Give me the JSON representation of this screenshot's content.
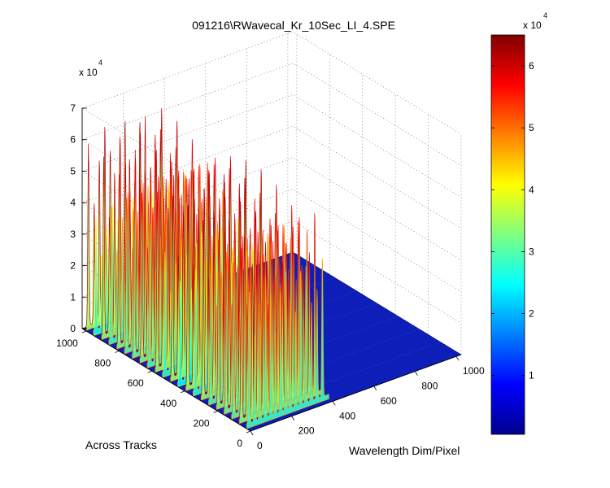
{
  "chart_data": {
    "type": "surface",
    "title": "091216\\RWavecal_Kr_10Sec_LI_4.SPE",
    "xlabel": "Wavelength Dim/Pixel",
    "ylabel": "Across Tracks",
    "zlabel": "",
    "x_ticks": [
      "0",
      "200",
      "400",
      "600",
      "800",
      "1000"
    ],
    "y_ticks": [
      "0",
      "200",
      "400",
      "600",
      "800",
      "1000"
    ],
    "z_ticks": [
      "0",
      "1",
      "2",
      "3",
      "4",
      "5",
      "6",
      "7"
    ],
    "z_multiplier": "x 10",
    "z_exponent": "4",
    "xlim": [
      0,
      1024
    ],
    "ylim": [
      0,
      1024
    ],
    "zlim": [
      0,
      70000
    ],
    "grid": true,
    "colormap": "jet",
    "colorbar": {
      "ticks": [
        "1",
        "2",
        "3",
        "4",
        "5",
        "6"
      ],
      "multiplier": "x 10",
      "exponent": "4",
      "range": [
        500,
        65000
      ]
    },
    "peak_pixels": [
      12,
      40,
      65,
      92,
      118,
      140,
      165,
      190,
      212,
      238,
      262,
      288,
      315,
      342,
      368
    ]
  }
}
